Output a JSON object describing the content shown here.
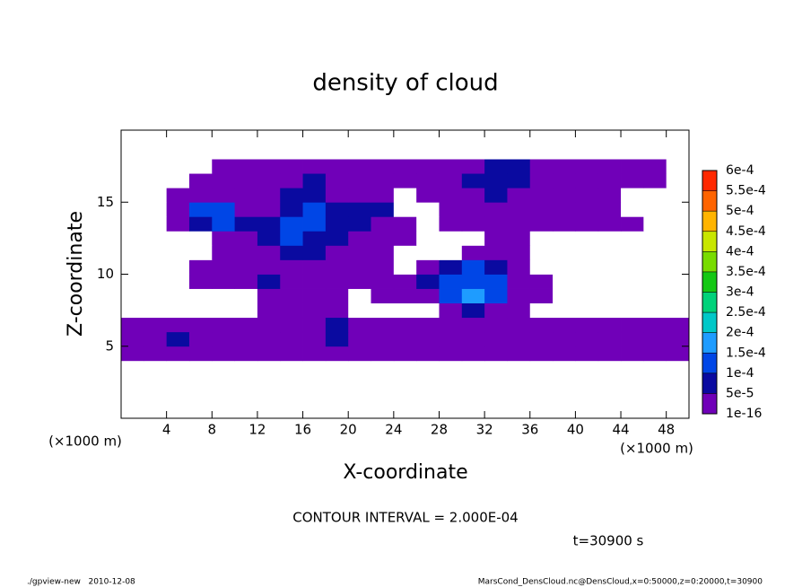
{
  "chart_data": {
    "type": "contour",
    "title": "density of cloud",
    "xlabel": "X-coordinate",
    "ylabel": "Z-coordinate",
    "x_unit_label": "(×1000 m)",
    "annotation": "CONTOUR INTERVAL = 2.000E-04",
    "time_label": "t=30900 s",
    "footer_left": "./gpview-new   2010-12-08",
    "footer_right": "MarsCond_DensCloud.nc@DensCloud,x=0:50000,z=0:20000,t=30900",
    "xlim": [
      0,
      50
    ],
    "ylim": [
      0,
      20
    ],
    "xticks": [
      4,
      8,
      12,
      16,
      20,
      24,
      28,
      32,
      36,
      40,
      44,
      48
    ],
    "yticks": [
      5,
      10,
      15
    ],
    "levels": [
      {
        "value": 1e-16,
        "label": "1e-16"
      },
      {
        "value": 5e-05,
        "label": "5e-5"
      },
      {
        "value": 0.0001,
        "label": "1e-4"
      },
      {
        "value": 0.00015,
        "label": "1.5e-4"
      },
      {
        "value": 0.0002,
        "label": "2e-4"
      },
      {
        "value": 0.00025,
        "label": "2.5e-4"
      },
      {
        "value": 0.0003,
        "label": "3e-4"
      },
      {
        "value": 0.00035,
        "label": "3.5e-4"
      },
      {
        "value": 0.0004,
        "label": "4e-4"
      },
      {
        "value": 0.00045,
        "label": "4.5e-4"
      },
      {
        "value": 0.0005,
        "label": "5e-4"
      },
      {
        "value": 0.00055,
        "label": "5.5e-4"
      },
      {
        "value": 0.0006,
        "label": "6e-4"
      }
    ],
    "colors": [
      "#7000b8",
      "#0a0aa0",
      "#0046e6",
      "#1e9cff",
      "#00c8c8",
      "#00d27a",
      "#14c814",
      "#78dc00",
      "#c8e600",
      "#ffb400",
      "#ff6400",
      "#ff2800",
      "#ff8c8c"
    ],
    "x": [
      1,
      3,
      5,
      7,
      9,
      11,
      13,
      15,
      17,
      19,
      21,
      23,
      25,
      27,
      29,
      31,
      33,
      35,
      37,
      39,
      41,
      43,
      45,
      47,
      49
    ],
    "y": [
      0.5,
      1.5,
      2.5,
      3.5,
      4.5,
      5.5,
      6.5,
      7.5,
      8.5,
      9.5,
      10.5,
      11.5,
      12.5,
      13.5,
      14.5,
      15.5,
      16.5,
      17.5,
      18.5,
      19.5
    ],
    "z": [
      [
        0,
        0,
        0,
        0,
        0,
        0,
        0,
        0,
        0,
        0,
        0,
        0,
        0,
        0,
        0,
        0,
        0,
        0,
        0,
        0,
        0,
        0,
        0,
        0,
        0
      ],
      [
        0,
        0,
        0,
        0,
        0,
        0,
        0,
        0,
        0,
        0,
        0,
        0,
        0,
        0,
        0,
        0,
        0,
        0,
        0,
        0,
        0,
        0,
        0,
        0,
        0
      ],
      [
        0,
        0,
        0,
        0,
        0,
        0,
        0,
        0,
        0,
        0,
        0,
        0,
        0,
        0,
        0,
        0,
        0,
        0,
        0,
        0,
        0,
        0,
        0,
        0,
        0
      ],
      [
        0,
        0,
        0,
        0,
        0,
        0,
        0,
        0,
        0,
        0,
        0,
        0,
        0,
        0,
        0,
        0,
        0,
        0,
        0,
        0,
        0,
        0,
        0,
        0,
        0
      ],
      [
        1e-16,
        1e-16,
        1e-16,
        1e-16,
        1e-16,
        1e-16,
        1e-16,
        1e-16,
        1e-16,
        1e-16,
        1e-16,
        1e-16,
        1e-16,
        1e-16,
        1e-16,
        1e-16,
        1e-16,
        1e-16,
        1e-16,
        1e-16,
        1e-16,
        1e-16,
        1e-16,
        1e-16,
        1e-16
      ],
      [
        1e-16,
        1e-16,
        5e-05,
        1e-16,
        1e-16,
        1e-16,
        1e-16,
        1e-16,
        1e-16,
        5e-05,
        1e-16,
        1e-16,
        1e-16,
        1e-16,
        1e-16,
        1e-16,
        1e-16,
        1e-16,
        1e-16,
        1e-16,
        1e-16,
        1e-16,
        1e-16,
        1e-16,
        1e-16
      ],
      [
        1e-16,
        1e-16,
        1e-16,
        1e-16,
        1e-16,
        1e-16,
        1e-16,
        1e-16,
        1e-16,
        5e-05,
        1e-16,
        1e-16,
        1e-16,
        1e-16,
        1e-16,
        1e-16,
        1e-16,
        1e-16,
        1e-16,
        1e-16,
        1e-16,
        1e-16,
        1e-16,
        1e-16,
        1e-16
      ],
      [
        0,
        0,
        0,
        0,
        0,
        0,
        1e-16,
        1e-16,
        1e-16,
        1e-16,
        0,
        0,
        0,
        0,
        1e-16,
        5e-05,
        1e-16,
        1e-16,
        0,
        0,
        0,
        0,
        0,
        0,
        0
      ],
      [
        0,
        0,
        0,
        0,
        0,
        0,
        1e-16,
        1e-16,
        1e-16,
        1e-16,
        0,
        1e-16,
        1e-16,
        1e-16,
        0.0001,
        0.00015,
        0.0001,
        1e-16,
        1e-16,
        0,
        0,
        0,
        0,
        0,
        0
      ],
      [
        0,
        0,
        0,
        1e-16,
        1e-16,
        1e-16,
        5e-05,
        1e-16,
        1e-16,
        1e-16,
        1e-16,
        1e-16,
        1e-16,
        5e-05,
        0.0001,
        0.0001,
        0.0001,
        1e-16,
        1e-16,
        0,
        0,
        0,
        0,
        0,
        0
      ],
      [
        0,
        0,
        0,
        1e-16,
        1e-16,
        1e-16,
        1e-16,
        1e-16,
        1e-16,
        1e-16,
        1e-16,
        1e-16,
        0,
        1e-16,
        5e-05,
        0.0001,
        5e-05,
        1e-16,
        0,
        0,
        0,
        0,
        0,
        0,
        0
      ],
      [
        0,
        0,
        0,
        0,
        1e-16,
        1e-16,
        1e-16,
        5e-05,
        5e-05,
        1e-16,
        1e-16,
        1e-16,
        0,
        0,
        0,
        1e-16,
        1e-16,
        1e-16,
        0,
        0,
        0,
        0,
        0,
        0,
        0
      ],
      [
        0,
        0,
        0,
        0,
        1e-16,
        1e-16,
        5e-05,
        0.0001,
        5e-05,
        5e-05,
        1e-16,
        1e-16,
        1e-16,
        0,
        0,
        0,
        1e-16,
        1e-16,
        0,
        0,
        0,
        0,
        0,
        0,
        0
      ],
      [
        0,
        0,
        1e-16,
        5e-05,
        0.0001,
        5e-05,
        5e-05,
        0.0001,
        0.0001,
        5e-05,
        5e-05,
        1e-16,
        1e-16,
        0,
        1e-16,
        1e-16,
        1e-16,
        1e-16,
        1e-16,
        1e-16,
        1e-16,
        1e-16,
        1e-16,
        0,
        0
      ],
      [
        0,
        0,
        1e-16,
        0.0001,
        0.0001,
        1e-16,
        1e-16,
        5e-05,
        0.0001,
        5e-05,
        5e-05,
        5e-05,
        0,
        0,
        1e-16,
        1e-16,
        1e-16,
        1e-16,
        1e-16,
        1e-16,
        1e-16,
        1e-16,
        0,
        0,
        0
      ],
      [
        0,
        0,
        1e-16,
        1e-16,
        1e-16,
        1e-16,
        1e-16,
        5e-05,
        5e-05,
        1e-16,
        1e-16,
        1e-16,
        0,
        1e-16,
        1e-16,
        1e-16,
        5e-05,
        1e-16,
        1e-16,
        1e-16,
        1e-16,
        1e-16,
        0,
        0,
        0
      ],
      [
        0,
        0,
        0,
        1e-16,
        1e-16,
        1e-16,
        1e-16,
        1e-16,
        5e-05,
        1e-16,
        1e-16,
        1e-16,
        1e-16,
        1e-16,
        1e-16,
        5e-05,
        5e-05,
        5e-05,
        1e-16,
        1e-16,
        1e-16,
        1e-16,
        1e-16,
        1e-16,
        0
      ],
      [
        0,
        0,
        0,
        0,
        1e-16,
        1e-16,
        1e-16,
        1e-16,
        1e-16,
        1e-16,
        1e-16,
        1e-16,
        1e-16,
        1e-16,
        1e-16,
        1e-16,
        5e-05,
        5e-05,
        1e-16,
        1e-16,
        1e-16,
        1e-16,
        1e-16,
        1e-16,
        0
      ],
      [
        0,
        0,
        0,
        0,
        0,
        0,
        0,
        0,
        0,
        0,
        0,
        0,
        0,
        0,
        0,
        0,
        0,
        0,
        0,
        0,
        0,
        0,
        0,
        0,
        0
      ],
      [
        0,
        0,
        0,
        0,
        0,
        0,
        0,
        0,
        0,
        0,
        0,
        0,
        0,
        0,
        0,
        0,
        0,
        0,
        0,
        0,
        0,
        0,
        0,
        0,
        0
      ]
    ]
  }
}
